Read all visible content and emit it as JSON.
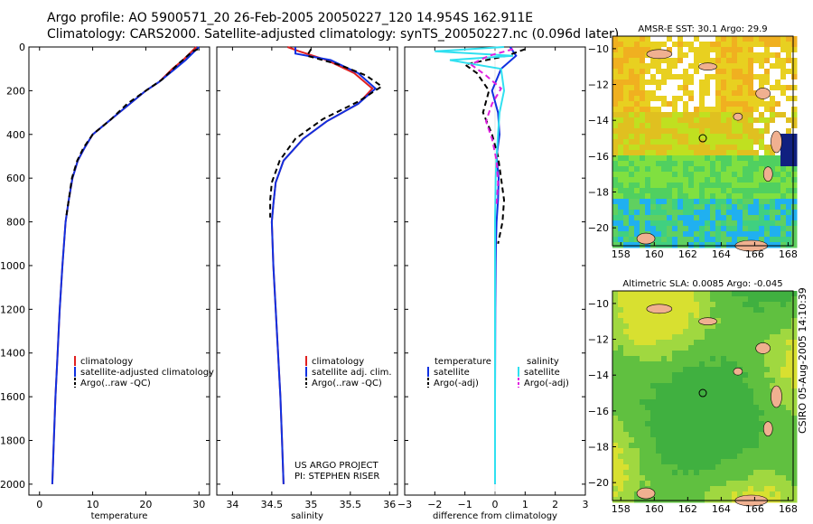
{
  "header": {
    "line1": "Argo profile: AO 5900571_20 26-Feb-2005 20050227_120 14.954S 162.911E",
    "line2": "Climatology: CARS2000. Satellite-adjusted climatology: synTS_20050227.nc (0.096d later)"
  },
  "side_label": "CSIRO 05-Aug-2005 14:10:39",
  "colors": {
    "clim": "#e02020",
    "sat": "#1030e0",
    "argo": "#000000",
    "sal_sat": "#30e0f0",
    "sal_argo": "#e020e0",
    "map_land": "#f0b090"
  },
  "chart_data": [
    {
      "type": "line",
      "id": "temperature",
      "xlabel": "temperature",
      "xlim": [
        -2,
        32
      ],
      "ylim": [
        0,
        2050
      ],
      "xticks": [
        0,
        10,
        20,
        30
      ],
      "yticks": [
        0,
        200,
        400,
        600,
        800,
        1000,
        1200,
        1400,
        1600,
        1800,
        2000
      ],
      "series": [
        {
          "name": "climatology",
          "style": "solid",
          "color": "clim",
          "x": [
            29.5,
            27,
            25,
            22.5,
            20,
            17,
            13.5,
            10,
            8.5,
            7.2,
            6.2,
            5.5,
            4.9,
            4.3,
            3.8,
            3.4,
            3.0,
            2.7,
            2.4
          ],
          "y": [
            0,
            60,
            100,
            160,
            200,
            260,
            330,
            400,
            460,
            520,
            600,
            700,
            800,
            1000,
            1200,
            1400,
            1600,
            1800,
            2000
          ]
        },
        {
          "name": "satellite-adjusted climatology",
          "style": "solid",
          "color": "sat",
          "x": [
            30,
            27.5,
            25.5,
            22.5,
            20,
            17,
            13.5,
            10,
            8.5,
            7.2,
            6.2,
            5.5,
            4.9,
            4.3,
            3.8,
            3.4,
            3.0,
            2.7,
            2.4
          ],
          "y": [
            0,
            60,
            100,
            160,
            200,
            260,
            330,
            400,
            460,
            520,
            600,
            700,
            800,
            1000,
            1200,
            1400,
            1600,
            1800,
            2000
          ]
        },
        {
          "name": "Argo(..raw -QC)",
          "style": "dash",
          "color": "argo",
          "x": [
            29.8,
            28.8,
            26,
            23,
            20,
            16.5,
            13.5,
            10,
            8.3,
            7.1,
            6.1,
            5.5,
            5.0
          ],
          "y": [
            10,
            20,
            80,
            150,
            200,
            260,
            330,
            400,
            460,
            520,
            600,
            700,
            780
          ]
        }
      ],
      "legend": [
        "climatology",
        "satellite-adjusted climatology",
        "Argo(..raw -QC)"
      ]
    },
    {
      "type": "line",
      "id": "salinity",
      "xlabel": "salinity",
      "xlim": [
        33.8,
        36.1
      ],
      "ylim": [
        0,
        2050
      ],
      "xticks": [
        34,
        34.5,
        35,
        35.5,
        36
      ],
      "xticklabels": [
        "34",
        "34.5",
        "35",
        "35.5",
        "36"
      ],
      "series": [
        {
          "name": "climatology",
          "style": "solid",
          "color": "clim",
          "x": [
            34.7,
            34.85,
            35.2,
            35.55,
            35.78,
            35.6,
            35.2,
            34.9,
            34.65,
            34.55,
            34.52,
            34.5,
            34.52,
            34.55,
            34.58,
            34.61,
            34.63,
            34.65
          ],
          "y": [
            0,
            20,
            60,
            120,
            190,
            260,
            340,
            420,
            520,
            620,
            720,
            800,
            1000,
            1200,
            1400,
            1600,
            1800,
            2000
          ]
        },
        {
          "name": "satellite adj. clim.",
          "style": "solid",
          "color": "sat",
          "x": [
            34.8,
            34.8,
            35.25,
            35.6,
            35.82,
            35.6,
            35.2,
            34.9,
            34.65,
            34.55,
            34.52,
            34.5,
            34.52,
            34.55,
            34.58,
            34.61,
            34.63,
            34.65
          ],
          "y": [
            0,
            30,
            60,
            120,
            190,
            260,
            340,
            420,
            520,
            620,
            720,
            800,
            1000,
            1200,
            1400,
            1600,
            1800,
            2000
          ]
        },
        {
          "name": "Argo(..raw -QC)",
          "style": "dash",
          "color": "argo",
          "x": [
            35.0,
            34.95,
            35.35,
            35.7,
            35.9,
            35.6,
            35.15,
            34.8,
            34.6,
            34.5,
            34.48,
            34.48
          ],
          "y": [
            10,
            40,
            80,
            130,
            180,
            250,
            330,
            420,
            520,
            620,
            700,
            780
          ]
        }
      ],
      "legend": [
        "climatology",
        "satellite adj. clim.",
        "Argo(..raw -QC)"
      ],
      "annotation": [
        "US ARGO PROJECT",
        "PI: STEPHEN RISER"
      ]
    },
    {
      "type": "line",
      "id": "difference",
      "xlabel": "difference from climatology",
      "xlim": [
        -3,
        3
      ],
      "ylim": [
        0,
        2050
      ],
      "xticks": [
        -3,
        -2,
        -1,
        0,
        1,
        2,
        3
      ],
      "series": [
        {
          "name": "temperature satellite",
          "style": "solid",
          "color": "sat",
          "x": [
            0.5,
            0.7,
            0.2,
            -0.1,
            0.1,
            0.15,
            0.05,
            0.12,
            0.1,
            0.05,
            0.03,
            0.02,
            0.01,
            0.0,
            0.0
          ],
          "y": [
            0,
            40,
            100,
            200,
            300,
            400,
            500,
            600,
            700,
            800,
            900,
            1000,
            1200,
            1600,
            2000
          ]
        },
        {
          "name": "temperature Argo(-adj)",
          "style": "dash",
          "color": "argo",
          "x": [
            1.0,
            0.4,
            -1.0,
            -0.6,
            -0.2,
            -0.4,
            -0.1,
            0.1,
            0.2,
            0.3,
            0.25,
            0.1
          ],
          "y": [
            10,
            40,
            80,
            120,
            200,
            300,
            400,
            500,
            600,
            700,
            800,
            900
          ]
        },
        {
          "name": "salinity satellite",
          "style": "solid",
          "color": "sal_sat",
          "x": [
            0.3,
            -2.0,
            0.6,
            -1.5,
            0.2,
            0.3,
            0.15,
            0.1,
            0.05,
            0.02,
            0.0,
            0.0,
            0.0
          ],
          "y": [
            0,
            20,
            40,
            60,
            100,
            200,
            300,
            400,
            500,
            600,
            800,
            1200,
            2000
          ]
        },
        {
          "name": "salinity Argo(-adj)",
          "style": "dash",
          "color": "sal_argo",
          "x": [
            0.6,
            -0.2,
            -0.8,
            -0.3,
            0.2,
            -0.1,
            -0.3,
            -0.1,
            0.05,
            0.1,
            0.05
          ],
          "y": [
            10,
            40,
            80,
            130,
            190,
            260,
            340,
            420,
            520,
            620,
            720
          ]
        }
      ],
      "legend_temperature": {
        "header": "temperature",
        "items": [
          "satellite",
          "Argo(-adj)"
        ]
      },
      "legend_salinity": {
        "header": "salinity",
        "items": [
          "satellite",
          "Argo(-adj)"
        ]
      }
    },
    {
      "type": "heatmap",
      "id": "sst_map",
      "title": "AMSR-E SST: 30.1  Argo: 29.9",
      "xticks": [
        158,
        160,
        162,
        164,
        166,
        168
      ],
      "yticks": [
        -10,
        -12,
        -14,
        -16,
        -18,
        -20
      ],
      "xlim": [
        157.5,
        168.3
      ],
      "ylim": [
        -21,
        -9.3
      ],
      "marker": {
        "lon": 162.9,
        "lat": -15.0
      }
    },
    {
      "type": "heatmap",
      "id": "sla_map",
      "title": "Altimetric SLA: 0.0085  Argo: -0.045",
      "xticks": [
        158,
        160,
        162,
        164,
        166,
        168
      ],
      "yticks": [
        -10,
        -12,
        -14,
        -16,
        -18,
        -20
      ],
      "xlim": [
        157.5,
        168.3
      ],
      "ylim": [
        -21,
        -9.3
      ],
      "marker": {
        "lon": 162.9,
        "lat": -15.0
      }
    }
  ]
}
